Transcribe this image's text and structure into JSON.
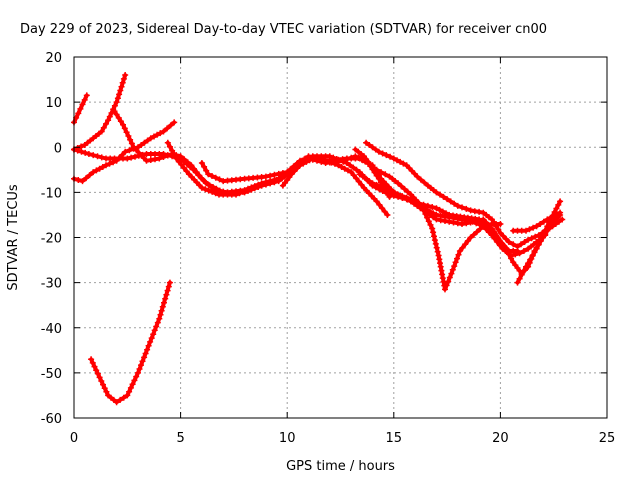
{
  "chart_data": {
    "type": "line",
    "title": "Day 229 of 2023, Sidereal Day-to-day VTEC variation (SDTVAR) for receiver cn00",
    "xlabel": "GPS time / hours",
    "ylabel": "SDTVAR / TECUs",
    "xlim": [
      0,
      25
    ],
    "ylim": [
      -60,
      20
    ],
    "xticks": [
      0,
      5,
      10,
      15,
      20,
      25
    ],
    "yticks": [
      -60,
      -50,
      -40,
      -30,
      -20,
      -10,
      0,
      10,
      20
    ],
    "grid": true,
    "series_color": "#ff0000",
    "marker": "plus",
    "series": [
      {
        "name": "arc-1",
        "points": [
          [
            0,
            5.5
          ],
          [
            0.2,
            7.5
          ],
          [
            0.4,
            9.5
          ],
          [
            0.6,
            11.5
          ]
        ]
      },
      {
        "name": "arc-2",
        "points": [
          [
            0,
            -0.5
          ],
          [
            0.5,
            0.5
          ],
          [
            0.9,
            2
          ],
          [
            1.3,
            3.5
          ],
          [
            1.6,
            6
          ],
          [
            2.0,
            10
          ],
          [
            2.4,
            16
          ]
        ]
      },
      {
        "name": "arc-3",
        "points": [
          [
            0,
            -0.5
          ],
          [
            0.7,
            -1.5
          ],
          [
            1.5,
            -2.5
          ],
          [
            2.5,
            -2.5
          ],
          [
            3.4,
            -1.5
          ],
          [
            4.2,
            -1.5
          ],
          [
            5.0,
            -2.5
          ],
          [
            5.6,
            -5
          ],
          [
            6.2,
            -8
          ],
          [
            7.0,
            -10
          ],
          [
            8.0,
            -10
          ],
          [
            8.8,
            -8.5
          ],
          [
            9.6,
            -7.5
          ],
          [
            10.4,
            -4.5
          ],
          [
            11.0,
            -2.5
          ],
          [
            11.8,
            -3.5
          ],
          [
            12.6,
            -3
          ],
          [
            13.2,
            -2
          ],
          [
            13.8,
            -3.5
          ],
          [
            14.3,
            -7
          ],
          [
            14.8,
            -11
          ]
        ]
      },
      {
        "name": "arc-4",
        "points": [
          [
            0,
            -7
          ],
          [
            0.4,
            -7.5
          ],
          [
            0.9,
            -5.5
          ],
          [
            1.5,
            -4
          ],
          [
            2.0,
            -3
          ],
          [
            2.4,
            -1
          ],
          [
            3.0,
            0
          ],
          [
            3.6,
            2
          ],
          [
            4.2,
            3.5
          ],
          [
            4.7,
            5.5
          ]
        ]
      },
      {
        "name": "arc-5",
        "points": [
          [
            1.9,
            8
          ],
          [
            2.3,
            5
          ],
          [
            2.8,
            0
          ],
          [
            3.4,
            -3
          ],
          [
            4.0,
            -2.5
          ],
          [
            4.6,
            -1.5
          ],
          [
            5.0,
            -2
          ],
          [
            5.5,
            -4
          ],
          [
            6.0,
            -7
          ],
          [
            6.6,
            -9.5
          ],
          [
            7.2,
            -10
          ],
          [
            8.0,
            -9.5
          ],
          [
            8.8,
            -8
          ],
          [
            9.6,
            -7
          ],
          [
            10.2,
            -5
          ],
          [
            10.9,
            -3
          ]
        ]
      },
      {
        "name": "arc-6",
        "points": [
          [
            4.4,
            1
          ],
          [
            4.8,
            -2.5
          ],
          [
            5.4,
            -6
          ],
          [
            6.0,
            -9
          ],
          [
            6.8,
            -10.5
          ],
          [
            7.6,
            -10.5
          ],
          [
            8.4,
            -9
          ],
          [
            9.2,
            -8
          ],
          [
            9.8,
            -6.5
          ],
          [
            10.4,
            -4
          ],
          [
            11.0,
            -2
          ],
          [
            11.6,
            -2.5
          ],
          [
            12.4,
            -4
          ],
          [
            13.0,
            -5.5
          ],
          [
            13.6,
            -9
          ],
          [
            14.2,
            -12
          ],
          [
            14.7,
            -15
          ]
        ]
      },
      {
        "name": "arc-7",
        "points": [
          [
            6.0,
            -3.5
          ],
          [
            6.3,
            -6
          ],
          [
            7.0,
            -7.5
          ],
          [
            8.0,
            -7
          ],
          [
            9.0,
            -6.5
          ],
          [
            10.0,
            -5.5
          ],
          [
            10.6,
            -3
          ],
          [
            11.2,
            -2
          ],
          [
            12.0,
            -2
          ],
          [
            12.8,
            -3.5
          ],
          [
            13.4,
            -5.5
          ],
          [
            14.0,
            -8.5
          ],
          [
            14.8,
            -10.5
          ],
          [
            15.6,
            -11.5
          ],
          [
            16.2,
            -12.5
          ],
          [
            17.0,
            -13.5
          ],
          [
            17.6,
            -15
          ],
          [
            18.3,
            -15.5
          ],
          [
            19.0,
            -16
          ],
          [
            19.6,
            -18.5
          ],
          [
            20.2,
            -22
          ],
          [
            20.6,
            -25.5
          ],
          [
            21.0,
            -28
          ],
          [
            21.3,
            -26.5
          ],
          [
            21.6,
            -23
          ],
          [
            22.0,
            -20
          ],
          [
            22.4,
            -17
          ],
          [
            22.8,
            -15
          ]
        ]
      },
      {
        "name": "arc-8",
        "points": [
          [
            9.8,
            -8.5
          ],
          [
            10.2,
            -6
          ],
          [
            10.6,
            -4
          ],
          [
            11.2,
            -2.5
          ],
          [
            12.0,
            -3
          ],
          [
            12.8,
            -2.5
          ],
          [
            13.4,
            -2.5
          ],
          [
            14.0,
            -4
          ],
          [
            14.4,
            -7
          ],
          [
            15.0,
            -10
          ],
          [
            15.8,
            -12
          ],
          [
            16.4,
            -14
          ],
          [
            17.0,
            -16
          ],
          [
            17.6,
            -16.5
          ],
          [
            18.2,
            -17
          ],
          [
            18.8,
            -16.5
          ],
          [
            19.2,
            -16
          ],
          [
            19.6,
            -18
          ],
          [
            20.0,
            -21
          ],
          [
            20.4,
            -23
          ],
          [
            20.8,
            -23
          ]
        ]
      },
      {
        "name": "arc-9",
        "points": [
          [
            13.2,
            -0.5
          ],
          [
            13.6,
            -2
          ],
          [
            14.0,
            -4.5
          ],
          [
            14.4,
            -5.5
          ],
          [
            14.8,
            -6.5
          ],
          [
            15.2,
            -8
          ],
          [
            15.8,
            -10.5
          ],
          [
            16.4,
            -13.5
          ],
          [
            17.0,
            -15
          ],
          [
            17.6,
            -15.5
          ],
          [
            18.2,
            -16
          ],
          [
            18.7,
            -16.5
          ],
          [
            19.2,
            -17.5
          ],
          [
            19.6,
            -19.5
          ],
          [
            20.1,
            -22.5
          ],
          [
            20.5,
            -24
          ],
          [
            20.9,
            -23.5
          ],
          [
            21.3,
            -22.5
          ],
          [
            21.7,
            -21
          ],
          [
            22.1,
            -19.5
          ]
        ]
      },
      {
        "name": "arc-10",
        "points": [
          [
            13.7,
            1
          ],
          [
            14.3,
            -1
          ],
          [
            15.0,
            -2.5
          ],
          [
            15.6,
            -4
          ],
          [
            16.1,
            -6.5
          ],
          [
            16.6,
            -8.5
          ],
          [
            17.0,
            -10
          ],
          [
            17.5,
            -11.5
          ],
          [
            18.0,
            -13
          ],
          [
            18.6,
            -14
          ],
          [
            19.2,
            -14.5
          ],
          [
            19.6,
            -16
          ],
          [
            20.0,
            -19
          ],
          [
            20.4,
            -21
          ],
          [
            20.8,
            -22
          ],
          [
            21.3,
            -20.5
          ],
          [
            21.8,
            -19.5
          ],
          [
            22.3,
            -18
          ],
          [
            22.9,
            -16
          ]
        ]
      },
      {
        "name": "arc-11",
        "points": [
          [
            13.4,
            -6
          ],
          [
            14.0,
            -8
          ],
          [
            14.6,
            -9
          ],
          [
            15.2,
            -10.5
          ],
          [
            15.8,
            -11.5
          ],
          [
            16.4,
            -14
          ],
          [
            16.8,
            -18
          ],
          [
            17.1,
            -24
          ],
          [
            17.4,
            -31.5
          ],
          [
            17.7,
            -28
          ],
          [
            18.1,
            -23
          ],
          [
            18.6,
            -20
          ],
          [
            19.2,
            -17.5
          ],
          [
            19.6,
            -17
          ],
          [
            20.0,
            -17
          ]
        ]
      },
      {
        "name": "arc-12",
        "points": [
          [
            20.8,
            -30
          ],
          [
            21.2,
            -26.5
          ],
          [
            21.7,
            -22.5
          ],
          [
            22.2,
            -17.5
          ],
          [
            22.8,
            -12
          ]
        ]
      },
      {
        "name": "arc-13",
        "points": [
          [
            20.6,
            -18.5
          ],
          [
            21.2,
            -18.5
          ],
          [
            21.7,
            -17.5
          ],
          [
            22.2,
            -16
          ],
          [
            22.8,
            -14.5
          ]
        ]
      },
      {
        "name": "arc-14",
        "points": [
          [
            0.8,
            -47
          ],
          [
            1.2,
            -51
          ],
          [
            1.6,
            -55
          ],
          [
            2.0,
            -56.5
          ],
          [
            2.5,
            -55
          ],
          [
            3.0,
            -50
          ],
          [
            3.5,
            -44
          ],
          [
            4.0,
            -38
          ],
          [
            4.5,
            -30
          ]
        ]
      }
    ]
  }
}
